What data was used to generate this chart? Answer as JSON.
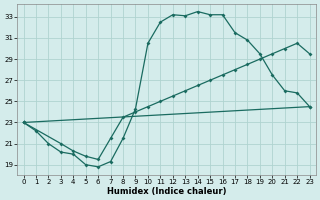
{
  "title": "",
  "xlabel": "Humidex (Indice chaleur)",
  "ylabel": "",
  "bg_color": "#d4eceb",
  "grid_color": "#afd4d0",
  "line_color": "#1a6b60",
  "xlim": [
    -0.5,
    23.5
  ],
  "ylim": [
    18.0,
    34.2
  ],
  "xticks": [
    0,
    1,
    2,
    3,
    4,
    5,
    6,
    7,
    8,
    9,
    10,
    11,
    12,
    13,
    14,
    15,
    16,
    17,
    18,
    19,
    20,
    21,
    22,
    23
  ],
  "yticks": [
    19,
    21,
    23,
    25,
    27,
    29,
    31,
    33
  ],
  "line1_x": [
    0,
    1,
    2,
    3,
    4,
    5,
    6,
    7,
    8,
    9,
    10,
    11,
    12,
    13,
    14,
    15,
    16,
    17,
    18,
    19,
    20,
    21,
    22,
    23
  ],
  "line1_y": [
    23.0,
    22.2,
    21.0,
    20.2,
    20.0,
    19.0,
    18.8,
    19.3,
    21.5,
    24.3,
    30.5,
    32.5,
    33.2,
    33.1,
    33.5,
    33.2,
    33.2,
    31.5,
    30.8,
    29.5,
    27.5,
    26.0,
    25.8,
    24.5
  ],
  "line2_x": [
    0,
    3,
    4,
    5,
    6,
    7,
    8,
    9,
    10,
    11,
    12,
    13,
    14,
    15,
    16,
    17,
    18,
    19,
    20,
    21,
    22,
    23
  ],
  "line2_y": [
    23.0,
    21.0,
    20.3,
    19.8,
    19.5,
    21.5,
    23.5,
    24.0,
    24.5,
    25.0,
    25.5,
    26.0,
    26.5,
    27.0,
    27.5,
    28.0,
    28.5,
    29.0,
    29.5,
    30.0,
    30.5,
    29.5
  ],
  "line3_x": [
    0,
    23
  ],
  "line3_y": [
    23.0,
    24.5
  ]
}
